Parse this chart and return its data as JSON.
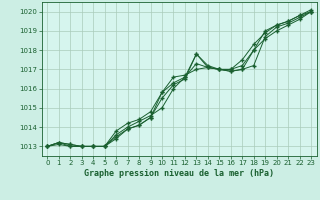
{
  "title": "Graphe pression niveau de la mer (hPa)",
  "bg_color": "#cceee4",
  "plot_bg_color": "#d6f5ee",
  "grid_color": "#aaccbb",
  "line_color": "#1a6030",
  "xlim": [
    -0.5,
    23.5
  ],
  "ylim": [
    1012.5,
    1020.5
  ],
  "yticks": [
    1013,
    1014,
    1015,
    1016,
    1017,
    1018,
    1019,
    1020
  ],
  "xticks": [
    0,
    1,
    2,
    3,
    4,
    5,
    6,
    7,
    8,
    9,
    10,
    11,
    12,
    13,
    14,
    15,
    16,
    17,
    18,
    19,
    20,
    21,
    22,
    23
  ],
  "series": [
    [
      1013.0,
      1013.2,
      1013.1,
      1013.0,
      1013.0,
      1013.0,
      1013.5,
      1013.9,
      1014.1,
      1014.5,
      1015.8,
      1016.3,
      1016.6,
      1017.8,
      1017.1,
      1017.0,
      1016.9,
      1017.0,
      1018.0,
      1019.0,
      1019.3,
      1019.5,
      1019.8,
      1020.1
    ],
    [
      1013.0,
      1013.1,
      1013.0,
      1013.0,
      1013.0,
      1013.0,
      1013.6,
      1014.0,
      1014.3,
      1014.6,
      1015.0,
      1016.0,
      1016.6,
      1017.3,
      1017.1,
      1017.0,
      1017.0,
      1017.2,
      1018.0,
      1018.6,
      1019.0,
      1019.3,
      1019.6,
      1020.0
    ],
    [
      1013.0,
      1013.2,
      1013.0,
      1013.0,
      1013.0,
      1013.0,
      1013.8,
      1014.2,
      1014.4,
      1014.8,
      1015.8,
      1016.6,
      1016.7,
      1017.0,
      1017.1,
      1017.0,
      1017.0,
      1017.5,
      1018.3,
      1018.9,
      1019.3,
      1019.5,
      1019.8,
      1020.0
    ],
    [
      1013.0,
      1013.2,
      1013.1,
      1013.0,
      1013.0,
      1013.0,
      1013.4,
      1013.9,
      1014.1,
      1014.5,
      1015.5,
      1016.2,
      1016.5,
      1017.8,
      1017.2,
      1017.0,
      1016.9,
      1017.0,
      1017.2,
      1018.7,
      1019.2,
      1019.4,
      1019.7,
      1020.0
    ]
  ]
}
